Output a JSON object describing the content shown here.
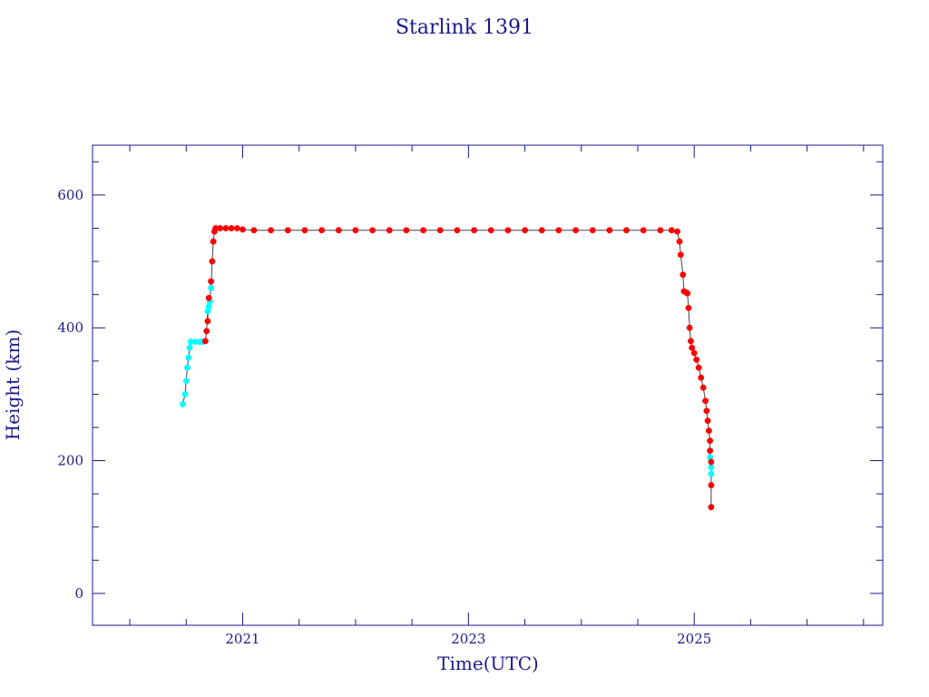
{
  "chart_data": {
    "type": "scatter",
    "title": "Starlink 1391",
    "xlabel": "Time(UTC)",
    "ylabel": "Height (km)",
    "xlim": [
      2019.67,
      2026.67
    ],
    "ylim": [
      -48,
      675
    ],
    "x_ticks": [
      2021,
      2023,
      2025
    ],
    "x_tick_labels": [
      "2021",
      "2023",
      "2025"
    ],
    "y_ticks": [
      0,
      200,
      400,
      600
    ],
    "y_tick_labels": [
      "0",
      "200",
      "400",
      "600"
    ],
    "grid": false,
    "colors": {
      "axes": "#1a1a8c",
      "series_a": "#ff0000",
      "series_b": "#00ffff",
      "connector": "#444444"
    },
    "series": [
      {
        "color": "#00ffff",
        "marker": "circle",
        "points": [
          [
            2020.47,
            285
          ],
          [
            2020.49,
            300
          ],
          [
            2020.5,
            320
          ],
          [
            2020.51,
            340
          ],
          [
            2020.52,
            355
          ],
          [
            2020.53,
            370
          ],
          [
            2020.54,
            379
          ],
          [
            2020.58,
            379
          ],
          [
            2020.62,
            379
          ],
          [
            2020.65,
            379
          ],
          [
            2020.69,
            425
          ],
          [
            2020.7,
            432
          ],
          [
            2020.71,
            440
          ],
          [
            2020.72,
            460
          ],
          [
            2025.14,
            205
          ],
          [
            2025.15,
            190
          ],
          [
            2025.15,
            180
          ]
        ]
      },
      {
        "color": "#ff0000",
        "marker": "circle",
        "points": [
          [
            2020.67,
            380
          ],
          [
            2020.68,
            395
          ],
          [
            2020.69,
            410
          ],
          [
            2020.7,
            445
          ],
          [
            2020.72,
            470
          ],
          [
            2020.73,
            500
          ],
          [
            2020.74,
            530
          ],
          [
            2020.75,
            545
          ],
          [
            2020.76,
            550
          ],
          [
            2020.8,
            550
          ],
          [
            2020.85,
            550
          ],
          [
            2020.9,
            550
          ],
          [
            2020.95,
            550
          ],
          [
            2021.0,
            548
          ],
          [
            2021.1,
            547
          ],
          [
            2021.25,
            547
          ],
          [
            2021.4,
            547
          ],
          [
            2021.55,
            547
          ],
          [
            2021.7,
            547
          ],
          [
            2021.85,
            547
          ],
          [
            2022.0,
            547
          ],
          [
            2022.15,
            547
          ],
          [
            2022.3,
            547
          ],
          [
            2022.45,
            547
          ],
          [
            2022.6,
            547
          ],
          [
            2022.75,
            547
          ],
          [
            2022.9,
            547
          ],
          [
            2023.05,
            547
          ],
          [
            2023.2,
            547
          ],
          [
            2023.35,
            547
          ],
          [
            2023.5,
            547
          ],
          [
            2023.65,
            547
          ],
          [
            2023.8,
            547
          ],
          [
            2023.95,
            547
          ],
          [
            2024.1,
            547
          ],
          [
            2024.25,
            547
          ],
          [
            2024.4,
            547
          ],
          [
            2024.55,
            547
          ],
          [
            2024.7,
            547
          ],
          [
            2024.8,
            547
          ],
          [
            2024.85,
            545
          ],
          [
            2024.87,
            530
          ],
          [
            2024.88,
            510
          ],
          [
            2024.9,
            480
          ],
          [
            2024.91,
            455
          ],
          [
            2024.93,
            453
          ],
          [
            2024.94,
            452
          ],
          [
            2024.95,
            430
          ],
          [
            2024.96,
            400
          ],
          [
            2024.97,
            380
          ],
          [
            2024.98,
            370
          ],
          [
            2025.0,
            362
          ],
          [
            2025.02,
            352
          ],
          [
            2025.04,
            340
          ],
          [
            2025.06,
            325
          ],
          [
            2025.08,
            310
          ],
          [
            2025.1,
            290
          ],
          [
            2025.11,
            275
          ],
          [
            2025.12,
            260
          ],
          [
            2025.13,
            245
          ],
          [
            2025.14,
            230
          ],
          [
            2025.14,
            215
          ],
          [
            2025.15,
            198
          ],
          [
            2025.15,
            163
          ],
          [
            2025.15,
            130
          ]
        ]
      }
    ]
  }
}
